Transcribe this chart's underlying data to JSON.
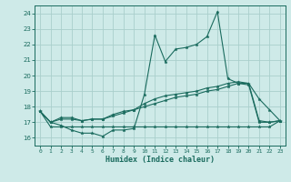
{
  "xlabel": "Humidex (Indice chaleur)",
  "bg_color": "#ceeae8",
  "line_color": "#1a6b5e",
  "grid_color": "#aacfcc",
  "xlim": [
    -0.5,
    23.5
  ],
  "ylim": [
    15.5,
    24.5
  ],
  "yticks": [
    16,
    17,
    18,
    19,
    20,
    21,
    22,
    23,
    24
  ],
  "xticks": [
    0,
    1,
    2,
    3,
    4,
    5,
    6,
    7,
    8,
    9,
    10,
    11,
    12,
    13,
    14,
    15,
    16,
    17,
    18,
    19,
    20,
    21,
    22,
    23
  ],
  "series": [
    [
      17.7,
      17.0,
      16.8,
      16.5,
      16.3,
      16.3,
      16.1,
      16.5,
      16.5,
      16.6,
      18.8,
      22.6,
      20.9,
      21.7,
      21.8,
      22.0,
      22.5,
      24.1,
      19.8,
      19.5,
      19.5,
      18.5,
      17.8,
      17.1
    ],
    [
      17.7,
      17.0,
      17.3,
      17.3,
      17.1,
      17.2,
      17.2,
      17.5,
      17.7,
      17.8,
      18.2,
      18.5,
      18.7,
      18.8,
      18.9,
      19.0,
      19.2,
      19.3,
      19.5,
      19.6,
      19.5,
      17.1,
      17.0,
      17.1
    ],
    [
      17.7,
      17.0,
      17.2,
      17.2,
      17.1,
      17.2,
      17.2,
      17.4,
      17.6,
      17.8,
      18.0,
      18.2,
      18.4,
      18.6,
      18.7,
      18.8,
      19.0,
      19.1,
      19.3,
      19.5,
      19.4,
      17.0,
      17.0,
      17.1
    ],
    [
      17.7,
      16.7,
      16.7,
      16.7,
      16.7,
      16.7,
      16.7,
      16.7,
      16.7,
      16.7,
      16.7,
      16.7,
      16.7,
      16.7,
      16.7,
      16.7,
      16.7,
      16.7,
      16.7,
      16.7,
      16.7,
      16.7,
      16.7,
      17.1
    ]
  ]
}
